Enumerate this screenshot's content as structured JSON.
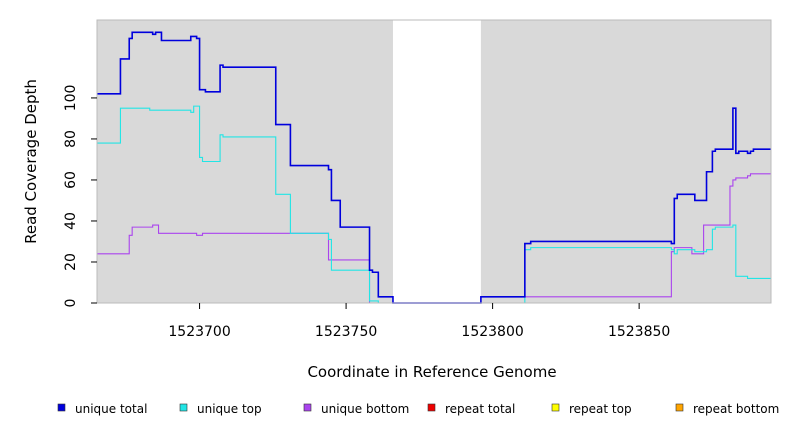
{
  "chart_data": {
    "type": "line",
    "title": "",
    "xlabel": "Coordinate in Reference Genome",
    "ylabel": "Read Coverage Depth",
    "xlim": [
      1523665,
      1523895
    ],
    "ylim": [
      0,
      138
    ],
    "x_ticks": [
      1523700,
      1523750,
      1523800,
      1523850
    ],
    "x_tick_labels": [
      "1523700",
      "1523750",
      "1523800",
      "1523850"
    ],
    "y_ticks": [
      0,
      20,
      40,
      60,
      80,
      100
    ],
    "y_tick_labels": [
      "0",
      "20",
      "40",
      "60",
      "80",
      "100"
    ],
    "gap_region": [
      1523766,
      1523796
    ],
    "grid": false,
    "legend_position": "bottom",
    "background_color": "#d9d9d9",
    "series": [
      {
        "name": "unique total",
        "color": "#0000dd",
        "points": [
          [
            1523665,
            102
          ],
          [
            1523673,
            102
          ],
          [
            1523673,
            119
          ],
          [
            1523676,
            119
          ],
          [
            1523676,
            129
          ],
          [
            1523677,
            129
          ],
          [
            1523677,
            132
          ],
          [
            1523684,
            132
          ],
          [
            1523684,
            131
          ],
          [
            1523685,
            131
          ],
          [
            1523685,
            132
          ],
          [
            1523687,
            132
          ],
          [
            1523687,
            128
          ],
          [
            1523697,
            128
          ],
          [
            1523697,
            130
          ],
          [
            1523699,
            130
          ],
          [
            1523699,
            129
          ],
          [
            1523700,
            129
          ],
          [
            1523700,
            104
          ],
          [
            1523702,
            104
          ],
          [
            1523702,
            103
          ],
          [
            1523707,
            103
          ],
          [
            1523707,
            116
          ],
          [
            1523708,
            116
          ],
          [
            1523708,
            115
          ],
          [
            1523726,
            115
          ],
          [
            1523726,
            87
          ],
          [
            1523731,
            87
          ],
          [
            1523731,
            67
          ],
          [
            1523744,
            67
          ],
          [
            1523744,
            65
          ],
          [
            1523745,
            65
          ],
          [
            1523745,
            50
          ],
          [
            1523748,
            50
          ],
          [
            1523748,
            37
          ],
          [
            1523758,
            37
          ],
          [
            1523758,
            16
          ],
          [
            1523759,
            16
          ],
          [
            1523759,
            15
          ],
          [
            1523761,
            15
          ],
          [
            1523761,
            3
          ],
          [
            1523766,
            3
          ],
          [
            1523766,
            0
          ],
          [
            1523796,
            0
          ],
          [
            1523796,
            3
          ],
          [
            1523811,
            3
          ],
          [
            1523811,
            29
          ],
          [
            1523813,
            29
          ],
          [
            1523813,
            30
          ],
          [
            1523861,
            30
          ],
          [
            1523861,
            29
          ],
          [
            1523862,
            29
          ],
          [
            1523862,
            51
          ],
          [
            1523863,
            51
          ],
          [
            1523863,
            53
          ],
          [
            1523869,
            53
          ],
          [
            1523869,
            50
          ],
          [
            1523873,
            50
          ],
          [
            1523873,
            64
          ],
          [
            1523875,
            64
          ],
          [
            1523875,
            74
          ],
          [
            1523876,
            74
          ],
          [
            1523876,
            75
          ],
          [
            1523882,
            75
          ],
          [
            1523882,
            95
          ],
          [
            1523883,
            95
          ],
          [
            1523883,
            73
          ],
          [
            1523884,
            73
          ],
          [
            1523884,
            74
          ],
          [
            1523887,
            74
          ],
          [
            1523887,
            73
          ],
          [
            1523888,
            73
          ],
          [
            1523888,
            74
          ],
          [
            1523889,
            74
          ],
          [
            1523889,
            75
          ],
          [
            1523895,
            75
          ]
        ]
      },
      {
        "name": "unique top",
        "color": "#22e5e5",
        "points": [
          [
            1523665,
            78
          ],
          [
            1523673,
            78
          ],
          [
            1523673,
            95
          ],
          [
            1523683,
            95
          ],
          [
            1523683,
            94
          ],
          [
            1523697,
            94
          ],
          [
            1523697,
            93
          ],
          [
            1523698,
            93
          ],
          [
            1523698,
            96
          ],
          [
            1523700,
            96
          ],
          [
            1523700,
            71
          ],
          [
            1523701,
            71
          ],
          [
            1523701,
            69
          ],
          [
            1523707,
            69
          ],
          [
            1523707,
            82
          ],
          [
            1523708,
            82
          ],
          [
            1523708,
            81
          ],
          [
            1523726,
            81
          ],
          [
            1523726,
            53
          ],
          [
            1523731,
            53
          ],
          [
            1523731,
            34
          ],
          [
            1523744,
            34
          ],
          [
            1523744,
            31
          ],
          [
            1523745,
            31
          ],
          [
            1523745,
            16
          ],
          [
            1523758,
            16
          ],
          [
            1523758,
            1
          ],
          [
            1523761,
            1
          ],
          [
            1523761,
            0
          ],
          [
            1523811,
            0
          ],
          [
            1523811,
            26
          ],
          [
            1523813,
            26
          ],
          [
            1523813,
            27
          ],
          [
            1523861,
            27
          ],
          [
            1523861,
            26
          ],
          [
            1523862,
            26
          ],
          [
            1523862,
            24
          ],
          [
            1523863,
            24
          ],
          [
            1523863,
            26
          ],
          [
            1523869,
            26
          ],
          [
            1523869,
            25
          ],
          [
            1523873,
            25
          ],
          [
            1523873,
            26
          ],
          [
            1523875,
            26
          ],
          [
            1523875,
            36
          ],
          [
            1523876,
            36
          ],
          [
            1523876,
            37
          ],
          [
            1523882,
            37
          ],
          [
            1523882,
            38
          ],
          [
            1523883,
            38
          ],
          [
            1523883,
            13
          ],
          [
            1523887,
            13
          ],
          [
            1523887,
            12
          ],
          [
            1523895,
            12
          ]
        ]
      },
      {
        "name": "unique bottom",
        "color": "#aa44ee",
        "points": [
          [
            1523665,
            24
          ],
          [
            1523676,
            24
          ],
          [
            1523676,
            33
          ],
          [
            1523677,
            33
          ],
          [
            1523677,
            37
          ],
          [
            1523684,
            37
          ],
          [
            1523684,
            38
          ],
          [
            1523686,
            38
          ],
          [
            1523686,
            34
          ],
          [
            1523699,
            34
          ],
          [
            1523699,
            33
          ],
          [
            1523701,
            33
          ],
          [
            1523701,
            34
          ],
          [
            1523744,
            34
          ],
          [
            1523744,
            21
          ],
          [
            1523758,
            21
          ],
          [
            1523758,
            0
          ],
          [
            1523767,
            0
          ],
          [
            1523796,
            0
          ],
          [
            1523796,
            3
          ],
          [
            1523861,
            3
          ],
          [
            1523861,
            25
          ],
          [
            1523862,
            25
          ],
          [
            1523862,
            27
          ],
          [
            1523868,
            27
          ],
          [
            1523868,
            24
          ],
          [
            1523872,
            24
          ],
          [
            1523872,
            38
          ],
          [
            1523881,
            38
          ],
          [
            1523881,
            57
          ],
          [
            1523882,
            57
          ],
          [
            1523882,
            60
          ],
          [
            1523883,
            60
          ],
          [
            1523883,
            61
          ],
          [
            1523887,
            61
          ],
          [
            1523887,
            62
          ],
          [
            1523888,
            62
          ],
          [
            1523888,
            63
          ],
          [
            1523895,
            63
          ]
        ]
      },
      {
        "name": "repeat total",
        "color": "#ee0000",
        "points": [
          [
            1523665,
            0
          ],
          [
            1523895,
            0
          ]
        ]
      },
      {
        "name": "repeat top",
        "color": "#ffff00",
        "points": [
          [
            1523665,
            0
          ],
          [
            1523895,
            0
          ]
        ]
      },
      {
        "name": "repeat bottom",
        "color": "#ffa500",
        "points": [
          [
            1523665,
            0
          ],
          [
            1523895,
            0
          ]
        ]
      }
    ]
  }
}
